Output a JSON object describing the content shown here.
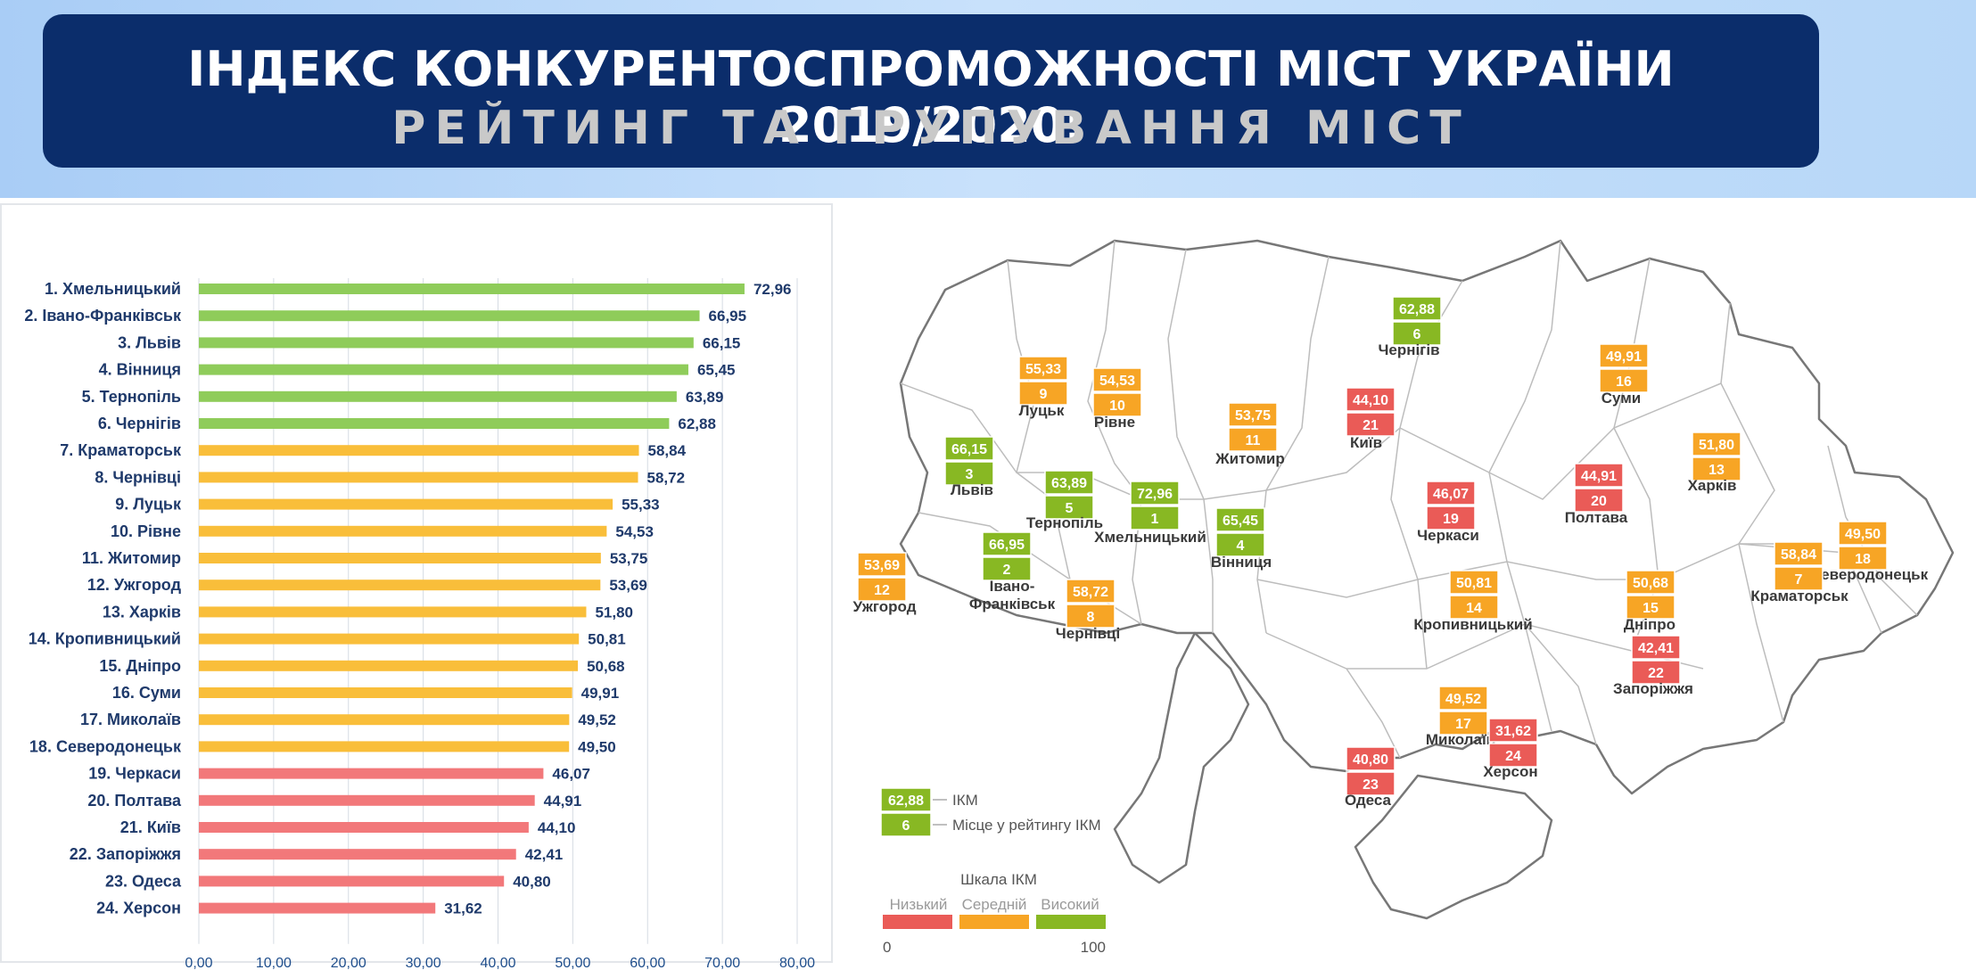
{
  "header": {
    "title_line1": "ІНДЕКС КОНКУРЕНТОСПРОМОЖНОСТІ МІСТ УКРАЇНИ 2019/2020:",
    "title_line2": "РЕЙТИНГ ТА ГРУПУВАННЯ МІСТ"
  },
  "colors": {
    "high": "#8fcc5a",
    "medium": "#f9be3a",
    "low": "#f2787a",
    "badge_high": "#88b823",
    "badge_medium": "#f7a525",
    "badge_low": "#ea5b57"
  },
  "chart_data": {
    "type": "bar",
    "orientation": "horizontal",
    "categories": [
      "1. Хмельницький",
      "2. Івано-Франківськ",
      "3. Львів",
      "4. Вінниця",
      "5. Тернопіль",
      "6. Чернігів",
      "7. Краматорськ",
      "8. Чернівці",
      "9. Луцьк",
      "10. Рівне",
      "11. Житомир",
      "12. Ужгород",
      "13. Харків",
      "14. Кропивницький",
      "15. Дніпро",
      "16. Суми",
      "17. Миколаїв",
      "18. Северодонецьк",
      "19. Черкаси",
      "20. Полтава",
      "21. Київ",
      "22. Запоріжжя",
      "23. Одеса",
      "24. Херсон"
    ],
    "values": [
      72.96,
      66.95,
      66.15,
      65.45,
      63.89,
      62.88,
      58.84,
      58.72,
      55.33,
      54.53,
      53.75,
      53.69,
      51.8,
      50.81,
      50.68,
      49.91,
      49.52,
      49.5,
      46.07,
      44.91,
      44.1,
      42.41,
      40.8,
      31.62
    ],
    "value_labels": [
      "72,96",
      "66,95",
      "66,15",
      "65,45",
      "63,89",
      "62,88",
      "58,84",
      "58,72",
      "55,33",
      "54,53",
      "53,75",
      "53,69",
      "51,80",
      "50,81",
      "50,68",
      "49,91",
      "49,52",
      "49,50",
      "46,07",
      "44,91",
      "44,10",
      "42,41",
      "40,80",
      "31,62"
    ],
    "groups": [
      "high",
      "high",
      "high",
      "high",
      "high",
      "high",
      "medium",
      "medium",
      "medium",
      "medium",
      "medium",
      "medium",
      "medium",
      "medium",
      "medium",
      "medium",
      "medium",
      "medium",
      "low",
      "low",
      "low",
      "low",
      "low",
      "low"
    ],
    "xlim": [
      0,
      80
    ],
    "x_ticks": [
      0,
      10,
      20,
      30,
      40,
      50,
      60,
      70,
      80
    ],
    "x_tick_labels": [
      "0,00",
      "10,00",
      "20,00",
      "30,00",
      "40,00",
      "50,00",
      "60,00",
      "70,00",
      "80,00"
    ],
    "grid": true,
    "title": "",
    "xlabel": "",
    "ylabel": ""
  },
  "map": {
    "cities": [
      {
        "name": "Чернігів",
        "value": "62,88",
        "rank": "6",
        "group": "high"
      },
      {
        "name": "Луцьк",
        "value": "55,33",
        "rank": "9",
        "group": "medium"
      },
      {
        "name": "Рівне",
        "value": "54,53",
        "rank": "10",
        "group": "medium"
      },
      {
        "name": "Житомир",
        "value": "53,75",
        "rank": "11",
        "group": "medium"
      },
      {
        "name": "Київ",
        "value": "44,10",
        "rank": "21",
        "group": "low"
      },
      {
        "name": "Суми",
        "value": "49,91",
        "rank": "16",
        "group": "medium"
      },
      {
        "name": "Львів",
        "value": "66,15",
        "rank": "3",
        "group": "high"
      },
      {
        "name": "Тернопіль",
        "value": "63,89",
        "rank": "5",
        "group": "high"
      },
      {
        "name": "Хмельницький",
        "value": "72,96",
        "rank": "1",
        "group": "high"
      },
      {
        "name": "Вінниця",
        "value": "65,45",
        "rank": "4",
        "group": "high"
      },
      {
        "name": "Черкаси",
        "value": "46,07",
        "rank": "19",
        "group": "low"
      },
      {
        "name": "Полтава",
        "value": "44,91",
        "rank": "20",
        "group": "low"
      },
      {
        "name": "Харків",
        "value": "51,80",
        "rank": "13",
        "group": "medium"
      },
      {
        "name": "Івано-Франківськ",
        "value": "66,95",
        "rank": "2",
        "group": "high"
      },
      {
        "name": "Чернівці",
        "value": "58,72",
        "rank": "8",
        "group": "medium"
      },
      {
        "name": "Ужгород",
        "value": "53,69",
        "rank": "12",
        "group": "medium"
      },
      {
        "name": "Кропивницький",
        "value": "50,81",
        "rank": "14",
        "group": "medium"
      },
      {
        "name": "Дніпро",
        "value": "50,68",
        "rank": "15",
        "group": "medium"
      },
      {
        "name": "Северодонецьк",
        "value": "49,50",
        "rank": "18",
        "group": "medium"
      },
      {
        "name": "Краматорськ",
        "value": "58,84",
        "rank": "7",
        "group": "medium"
      },
      {
        "name": "Запоріжжя",
        "value": "42,41",
        "rank": "22",
        "group": "low"
      },
      {
        "name": "Миколаїв",
        "value": "49,52",
        "rank": "17",
        "group": "medium"
      },
      {
        "name": "Херсон",
        "value": "31,62",
        "rank": "24",
        "group": "low"
      },
      {
        "name": "Одеса",
        "value": "40,80",
        "rank": "23",
        "group": "low"
      }
    ],
    "legend": {
      "value": "62,88",
      "rank": "6",
      "value_label": "ІКМ",
      "rank_label": "Місце у рейтингу ІКМ"
    },
    "scale": {
      "title": "Шкала ІКМ",
      "low": "Низький",
      "medium": "Середній",
      "high": "Високий",
      "min": "0",
      "max": "100"
    }
  }
}
